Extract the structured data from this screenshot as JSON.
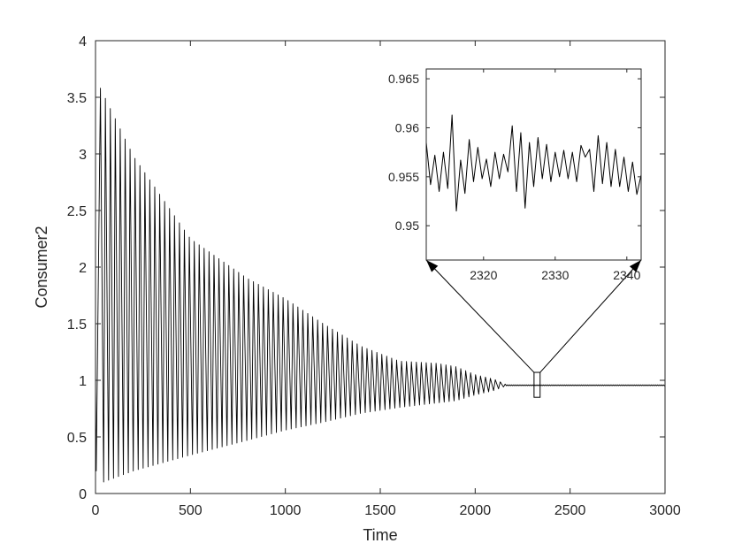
{
  "chart_data": [
    {
      "id": "main",
      "type": "line",
      "xlabel": "Time",
      "ylabel": "Consumer2",
      "xlim": [
        0,
        3000
      ],
      "ylim": [
        0,
        4
      ],
      "xticks": [
        0,
        500,
        1000,
        1500,
        2000,
        2500,
        3000
      ],
      "yticks": [
        0,
        0.5,
        1,
        1.5,
        2,
        2.5,
        3,
        3.5,
        4
      ],
      "grid": false,
      "series": [
        {
          "style": "oscillating",
          "color": "#000000",
          "period": 26,
          "equilibrium": 0.956,
          "oscillation_end_time": 2160,
          "envelope_max": [
            [
              0,
              3.58
            ],
            [
              26,
              3.58
            ],
            [
              200,
              2.98
            ],
            [
              500,
              2.25
            ],
            [
              800,
              1.9
            ],
            [
              1000,
              1.72
            ],
            [
              1200,
              1.5
            ],
            [
              1400,
              1.3
            ],
            [
              1600,
              1.17
            ],
            [
              1800,
              1.15
            ],
            [
              1900,
              1.12
            ],
            [
              2000,
              1.05
            ],
            [
              2100,
              1.01
            ],
            [
              2160,
              0.965
            ]
          ],
          "envelope_min": [
            [
              0,
              0.0
            ],
            [
              40,
              0.1
            ],
            [
              200,
              0.2
            ],
            [
              500,
              0.34
            ],
            [
              800,
              0.47
            ],
            [
              1000,
              0.56
            ],
            [
              1200,
              0.63
            ],
            [
              1400,
              0.71
            ],
            [
              1600,
              0.76
            ],
            [
              1800,
              0.8
            ],
            [
              1900,
              0.82
            ],
            [
              2000,
              0.87
            ],
            [
              2100,
              0.91
            ],
            [
              2160,
              0.948
            ]
          ]
        }
      ],
      "zoom_box": {
        "x": [
          2310,
          2342
        ],
        "y": [
          0.85,
          1.07
        ]
      }
    },
    {
      "id": "inset",
      "type": "line",
      "xlim": [
        2312,
        2342
      ],
      "ylim": [
        0.9465,
        0.966
      ],
      "xticks": [
        2320,
        2330,
        2340
      ],
      "yticks": [
        0.95,
        0.955,
        0.96,
        0.965
      ],
      "ytick_labels": [
        "0.95",
        "0.955",
        "0.96",
        "0.965"
      ],
      "grid": false,
      "series": [
        {
          "color": "#000000",
          "x": [
            2312,
            2312.6,
            2313.2,
            2313.8,
            2314.4,
            2315.0,
            2315.6,
            2316.2,
            2316.8,
            2317.4,
            2318.0,
            2318.6,
            2319.2,
            2319.8,
            2320.4,
            2321.0,
            2321.6,
            2322.2,
            2322.8,
            2323.4,
            2324.0,
            2324.6,
            2325.2,
            2325.8,
            2326.4,
            2327.0,
            2327.6,
            2328.2,
            2328.8,
            2329.4,
            2330.0,
            2330.6,
            2331.2,
            2331.8,
            2332.4,
            2333.0,
            2333.6,
            2334.2,
            2334.8,
            2335.4,
            2336.0,
            2336.6,
            2337.2,
            2337.8,
            2338.4,
            2339.0,
            2339.6,
            2340.2,
            2340.8,
            2341.4,
            2342.0
          ],
          "y": [
            0.9585,
            0.9542,
            0.9572,
            0.9535,
            0.9575,
            0.9538,
            0.9613,
            0.9515,
            0.9567,
            0.9533,
            0.9588,
            0.9545,
            0.958,
            0.9548,
            0.9568,
            0.954,
            0.9575,
            0.9548,
            0.9573,
            0.9555,
            0.9602,
            0.9535,
            0.9595,
            0.9518,
            0.9585,
            0.954,
            0.959,
            0.9548,
            0.9583,
            0.9545,
            0.9575,
            0.955,
            0.9577,
            0.9548,
            0.9575,
            0.9545,
            0.9582,
            0.957,
            0.9578,
            0.9535,
            0.9592,
            0.9543,
            0.9585,
            0.954,
            0.9578,
            0.954,
            0.957,
            0.9535,
            0.9565,
            0.9532,
            0.9552
          ]
        }
      ]
    }
  ]
}
